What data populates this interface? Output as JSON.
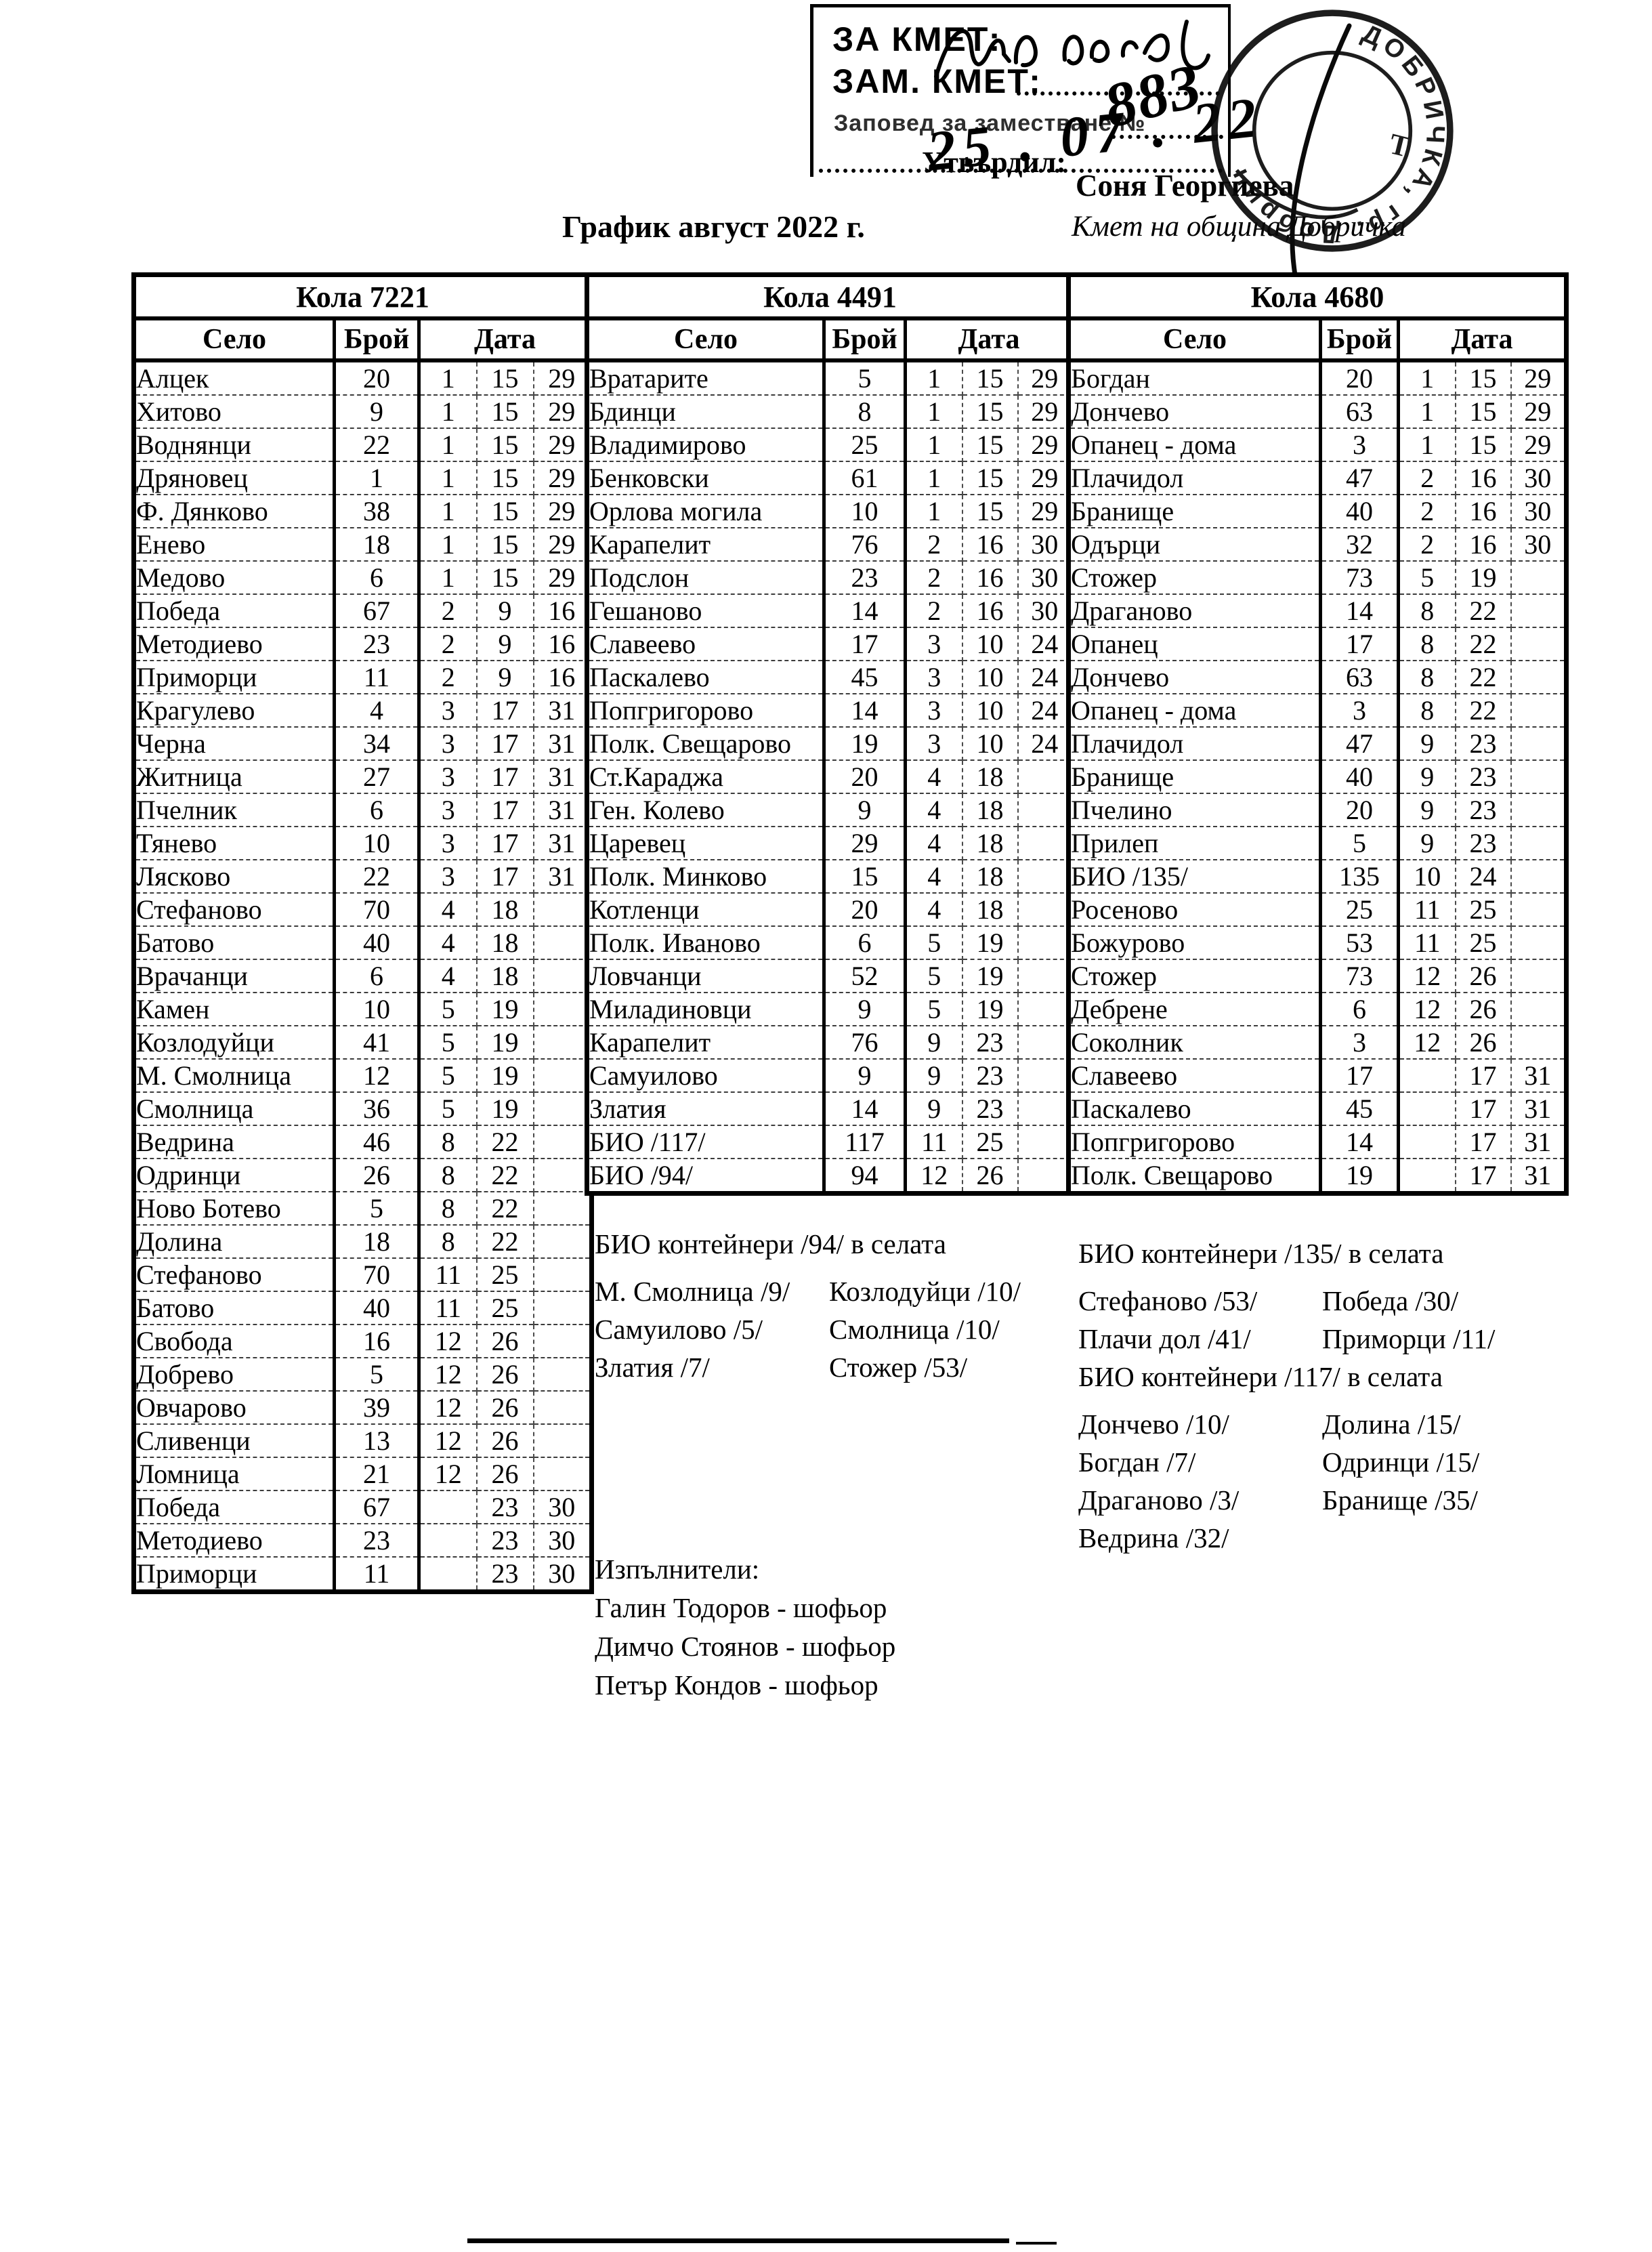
{
  "header": {
    "stamp_box": {
      "za_kmet": "ЗА КМЕТ:",
      "zam_kmet": "ЗАМ. КМЕТ:",
      "order_label": "Заповед за заместване №",
      "order_number_handwritten": "883",
      "order_date_handwritten": "25 . 07 . 22"
    },
    "seal_arc_text": "ДОБРИЧКА, гр. Добрич",
    "seal_center_mark": "Т",
    "approved_label": "Утвърдил:",
    "approver_name": "Соня Георгиева",
    "approver_title": "Кмет  на община Добричка",
    "title": "График август 2022 г."
  },
  "tables": [
    {
      "title": "Кола 7221",
      "columns": {
        "village": "Село",
        "count": "Брой",
        "date": "Дата"
      },
      "rows": [
        [
          "Алцек",
          "20",
          "1",
          "15",
          "29"
        ],
        [
          "Хитово",
          "9",
          "1",
          "15",
          "29"
        ],
        [
          "Воднянци",
          "22",
          "1",
          "15",
          "29"
        ],
        [
          "Дряновец",
          "1",
          "1",
          "15",
          "29"
        ],
        [
          "Ф. Дянково",
          "38",
          "1",
          "15",
          "29"
        ],
        [
          "Енево",
          "18",
          "1",
          "15",
          "29"
        ],
        [
          "Медово",
          "6",
          "1",
          "15",
          "29"
        ],
        [
          "Победа",
          "67",
          "2",
          "9",
          "16"
        ],
        [
          "Методиево",
          "23",
          "2",
          "9",
          "16"
        ],
        [
          "Приморци",
          "11",
          "2",
          "9",
          "16"
        ],
        [
          "Крагулево",
          "4",
          "3",
          "17",
          "31"
        ],
        [
          "Черна",
          "34",
          "3",
          "17",
          "31"
        ],
        [
          "Житница",
          "27",
          "3",
          "17",
          "31"
        ],
        [
          "Пчелник",
          "6",
          "3",
          "17",
          "31"
        ],
        [
          "Тянево",
          "10",
          "3",
          "17",
          "31"
        ],
        [
          "Лясково",
          "22",
          "3",
          "17",
          "31"
        ],
        [
          "Стефаново",
          "70",
          "4",
          "18",
          ""
        ],
        [
          "Батово",
          "40",
          "4",
          "18",
          ""
        ],
        [
          "Врачанци",
          "6",
          "4",
          "18",
          ""
        ],
        [
          "Камен",
          "10",
          "5",
          "19",
          ""
        ],
        [
          "Козлодуйци",
          "41",
          "5",
          "19",
          ""
        ],
        [
          "М. Смолница",
          "12",
          "5",
          "19",
          ""
        ],
        [
          "Смолница",
          "36",
          "5",
          "19",
          ""
        ],
        [
          "Ведрина",
          "46",
          "8",
          "22",
          ""
        ],
        [
          "Одринци",
          "26",
          "8",
          "22",
          ""
        ],
        [
          "Ново Ботево",
          "5",
          "8",
          "22",
          ""
        ],
        [
          "Долина",
          "18",
          "8",
          "22",
          ""
        ],
        [
          "Стефаново",
          "70",
          "11",
          "25",
          ""
        ],
        [
          "Батово",
          "40",
          "11",
          "25",
          ""
        ],
        [
          "Свобода",
          "16",
          "12",
          "26",
          ""
        ],
        [
          "Добрево",
          "5",
          "12",
          "26",
          ""
        ],
        [
          "Овчарово",
          "39",
          "12",
          "26",
          ""
        ],
        [
          "Сливенци",
          "13",
          "12",
          "26",
          ""
        ],
        [
          "Ломница",
          "21",
          "12",
          "26",
          ""
        ],
        [
          "Победа",
          "67",
          "",
          "23",
          "30"
        ],
        [
          "Методиево",
          "23",
          "",
          "23",
          "30"
        ],
        [
          "Приморци",
          "11",
          "",
          "23",
          "30"
        ]
      ]
    },
    {
      "title": "Кола 4491",
      "columns": {
        "village": "Село",
        "count": "Брой",
        "date": "Дата"
      },
      "rows": [
        [
          "Вратарите",
          "5",
          "1",
          "15",
          "29"
        ],
        [
          "Бдинци",
          "8",
          "1",
          "15",
          "29"
        ],
        [
          "Владимирово",
          "25",
          "1",
          "15",
          "29"
        ],
        [
          "Бенковски",
          "61",
          "1",
          "15",
          "29"
        ],
        [
          "Орлова могила",
          "10",
          "1",
          "15",
          "29"
        ],
        [
          "Карапелит",
          "76",
          "2",
          "16",
          "30"
        ],
        [
          "Подслон",
          "23",
          "2",
          "16",
          "30"
        ],
        [
          "Гешаново",
          "14",
          "2",
          "16",
          "30"
        ],
        [
          "Славеево",
          "17",
          "3",
          "10",
          "24"
        ],
        [
          "Паскалево",
          "45",
          "3",
          "10",
          "24"
        ],
        [
          "Попгригорово",
          "14",
          "3",
          "10",
          "24"
        ],
        [
          "Полк. Свещарово",
          "19",
          "3",
          "10",
          "24"
        ],
        [
          "Ст.Караджа",
          "20",
          "4",
          "18",
          ""
        ],
        [
          "Ген. Колево",
          "9",
          "4",
          "18",
          ""
        ],
        [
          "Царевец",
          "29",
          "4",
          "18",
          ""
        ],
        [
          "Полк. Минково",
          "15",
          "4",
          "18",
          ""
        ],
        [
          "Котленци",
          "20",
          "4",
          "18",
          ""
        ],
        [
          "Полк. Иваново",
          "6",
          "5",
          "19",
          ""
        ],
        [
          "Ловчанци",
          "52",
          "5",
          "19",
          ""
        ],
        [
          "Миладиновци",
          "9",
          "5",
          "19",
          ""
        ],
        [
          "Карапелит",
          "76",
          "9",
          "23",
          ""
        ],
        [
          "Самуилово",
          "9",
          "9",
          "23",
          ""
        ],
        [
          "Златия",
          "14",
          "9",
          "23",
          ""
        ],
        [
          "БИО /117/",
          "117",
          "11",
          "25",
          ""
        ],
        [
          "БИО /94/",
          "94",
          "12",
          "26",
          ""
        ]
      ]
    },
    {
      "title": "Кола 4680",
      "columns": {
        "village": "Село",
        "count": "Брой",
        "date": "Дата"
      },
      "rows": [
        [
          "Богдан",
          "20",
          "1",
          "15",
          "29"
        ],
        [
          "Дончево",
          "63",
          "1",
          "15",
          "29"
        ],
        [
          "Опанец - дома",
          "3",
          "1",
          "15",
          "29"
        ],
        [
          "Плачидол",
          "47",
          "2",
          "16",
          "30"
        ],
        [
          "Бранище",
          "40",
          "2",
          "16",
          "30"
        ],
        [
          "Одърци",
          "32",
          "2",
          "16",
          "30"
        ],
        [
          "Стожер",
          "73",
          "5",
          "19",
          ""
        ],
        [
          "Драганово",
          "14",
          "8",
          "22",
          ""
        ],
        [
          "Опанец",
          "17",
          "8",
          "22",
          ""
        ],
        [
          "Дончево",
          "63",
          "8",
          "22",
          ""
        ],
        [
          "Опанец - дома",
          "3",
          "8",
          "22",
          ""
        ],
        [
          "Плачидол",
          "47",
          "9",
          "23",
          ""
        ],
        [
          "Бранище",
          "40",
          "9",
          "23",
          ""
        ],
        [
          "Пчелино",
          "20",
          "9",
          "23",
          ""
        ],
        [
          "Прилеп",
          "5",
          "9",
          "23",
          ""
        ],
        [
          "БИО /135/",
          "135",
          "10",
          "24",
          ""
        ],
        [
          "Росеново",
          "25",
          "11",
          "25",
          ""
        ],
        [
          "Божурово",
          "53",
          "11",
          "25",
          ""
        ],
        [
          "Стожер",
          "73",
          "12",
          "26",
          ""
        ],
        [
          "Дебрене",
          "6",
          "12",
          "26",
          ""
        ],
        [
          "Соколник",
          "3",
          "12",
          "26",
          ""
        ],
        [
          "Славеево",
          "17",
          "",
          "17",
          "31"
        ],
        [
          "Паскалево",
          "45",
          "",
          "17",
          "31"
        ],
        [
          "Попгригорово",
          "14",
          "",
          "17",
          "31"
        ],
        [
          "Полк. Свещарово",
          "19",
          "",
          "17",
          "31"
        ]
      ]
    }
  ],
  "notes_bio94": {
    "title": "БИО контейнери /94/ в селата",
    "lines": [
      [
        "М. Смолница /9/",
        "Козлодуйци /10/"
      ],
      [
        "Самуилово /5/",
        "Смолница /10/"
      ],
      [
        "Златия /7/",
        "Стожер /53/"
      ]
    ]
  },
  "notes_bio135": {
    "title": "БИО контейнери /135/ в селата",
    "lines": [
      [
        "Стефаново /53/",
        "Победа /30/"
      ],
      [
        "Плачи дол /41/",
        "Приморци /11/"
      ]
    ]
  },
  "notes_bio117": {
    "title": "БИО контейнери /117/ в селата",
    "lines": [
      [
        "Дончево /10/",
        "Долина /15/"
      ],
      [
        "Богдан /7/",
        "Одринци /15/"
      ],
      [
        "Драганово /3/",
        "Бранище /35/"
      ],
      [
        "Ведрина /32/",
        ""
      ]
    ]
  },
  "executors": {
    "label": "Изпълнители:",
    "names": [
      "Галин Тодоров - шофьор",
      "Димчо Стоянов - шофьор",
      "Петър Кондов - шофьор"
    ]
  }
}
